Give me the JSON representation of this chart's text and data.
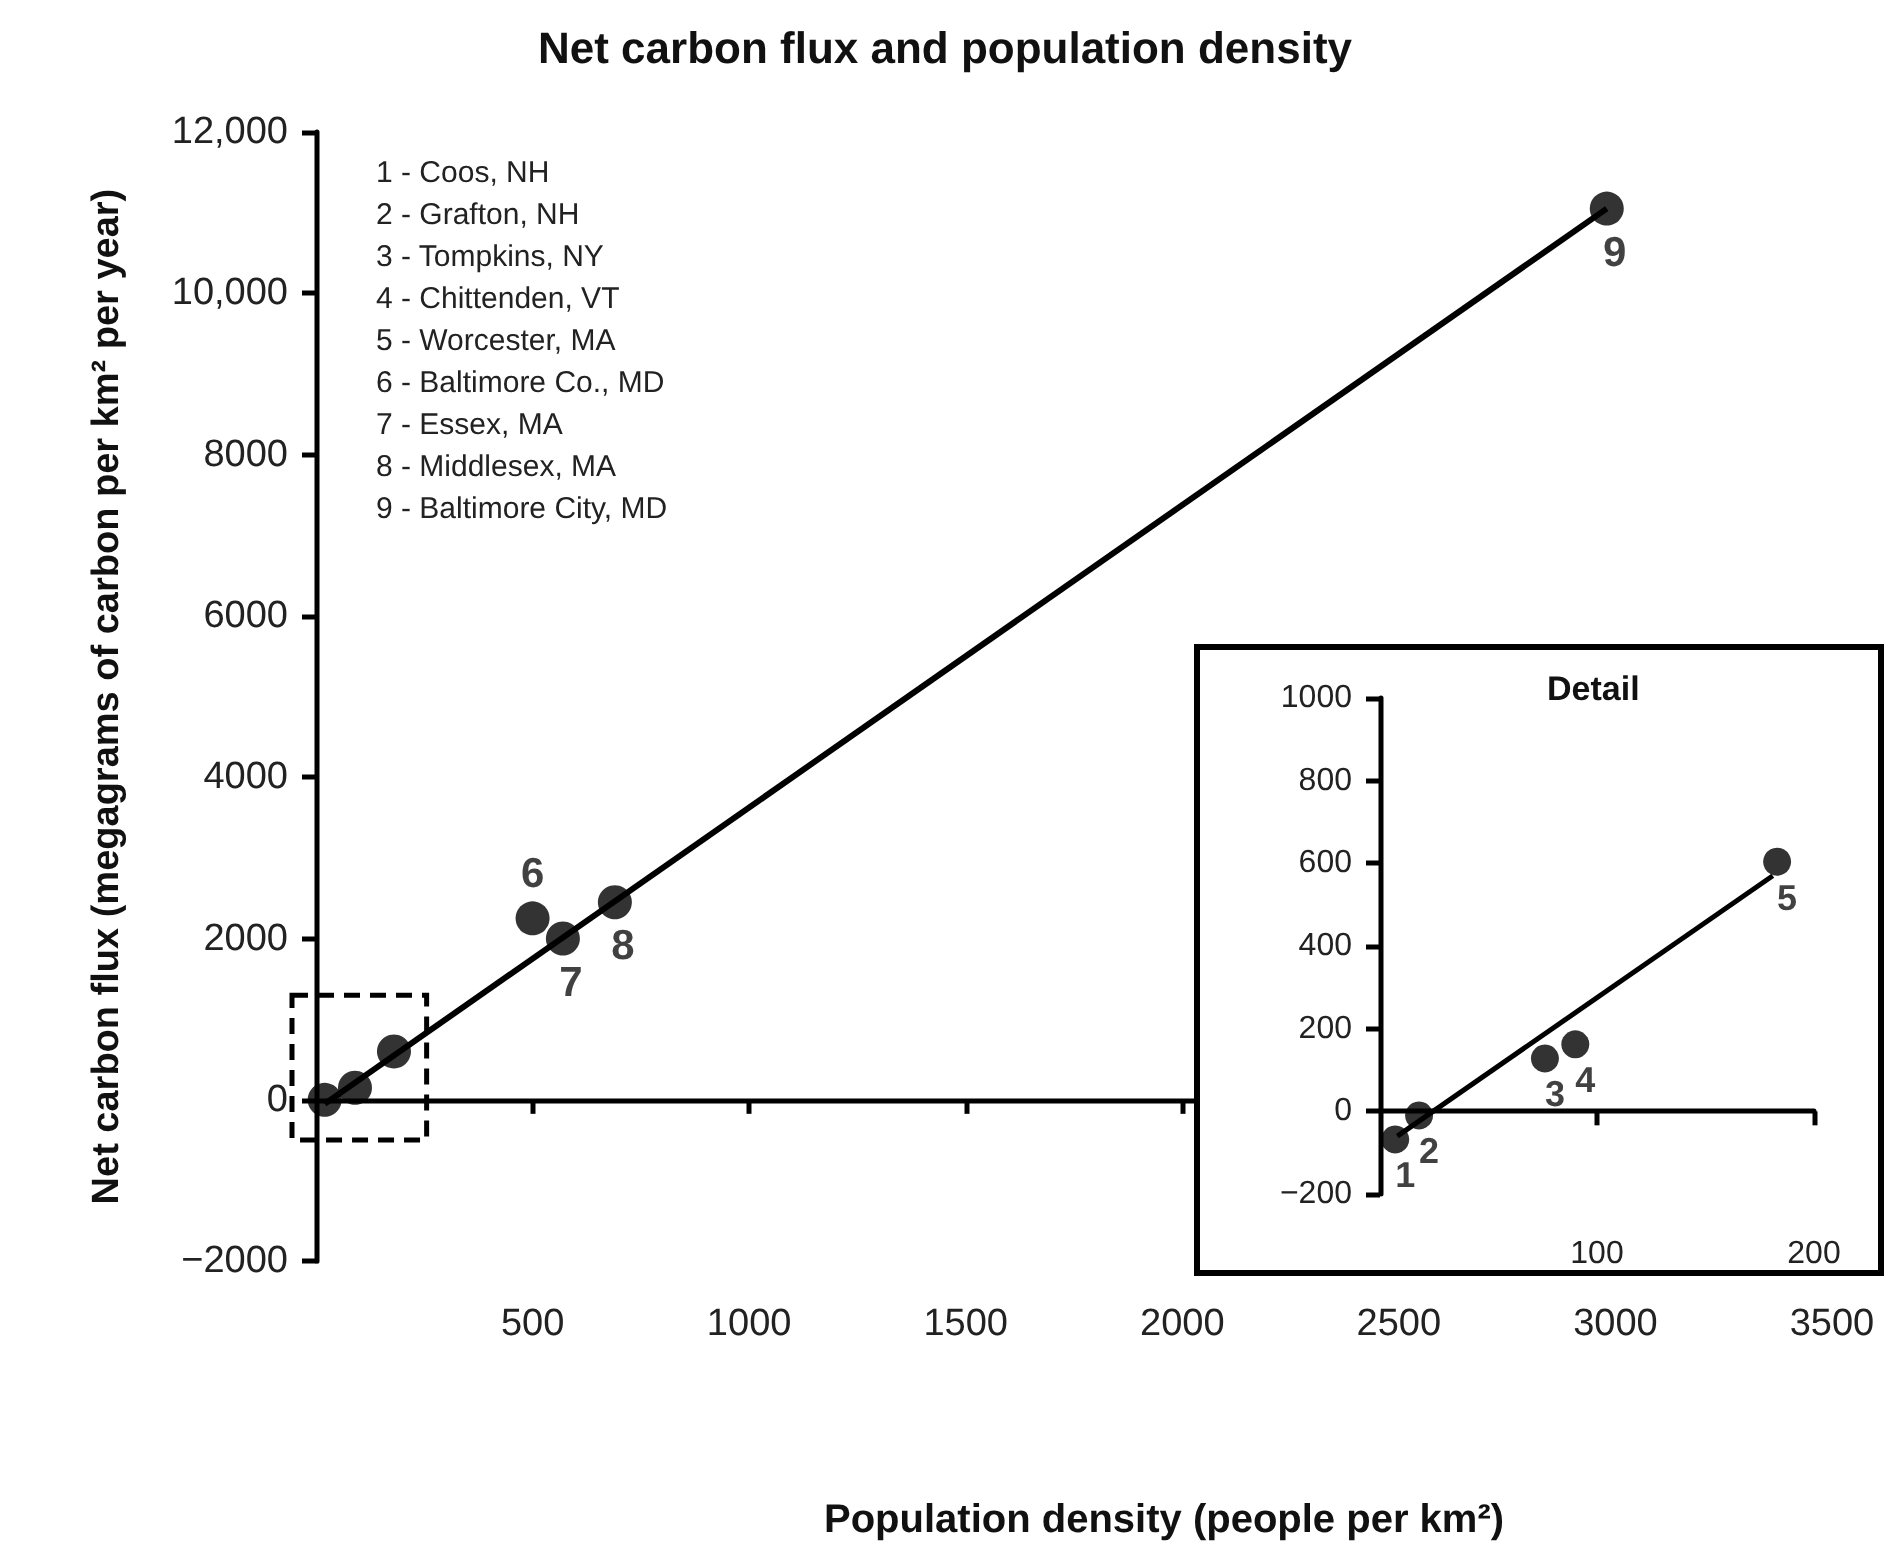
{
  "chart_data": [
    {
      "type": "scatter",
      "title": "Net carbon flux and population density",
      "xlabel": "Population density (people per km²)",
      "ylabel": "Net carbon flux (megagrams of carbon per km² per year)",
      "xlim": [
        0,
        3500
      ],
      "xticks": [
        500,
        1000,
        1500,
        2000,
        2500,
        3000,
        3500
      ],
      "ylim": [
        -2000,
        12000
      ],
      "yticks": [
        {
          "value": -2000,
          "label": "−2000"
        },
        0,
        2000,
        4000,
        6000,
        8000,
        {
          "value": 10000,
          "label": "10,000"
        },
        {
          "value": 12000,
          "label": "12,000"
        }
      ],
      "marker": "circle",
      "series": [
        {
          "color": "#000000",
          "x": [
            20,
            90,
            180,
            500,
            570,
            690,
            2980
          ],
          "values": [
            0,
            150,
            600,
            2250,
            2000,
            2450,
            11050
          ]
        },
        {
          "type": "line",
          "marker": "none",
          "color": "#000000",
          "x": [
            20,
            2980
          ],
          "values": [
            -50,
            11050
          ]
        }
      ],
      "annotations": [
        "1 - Coos, NH",
        "2 - Grafton, NH",
        "3 - Tompkins, NY",
        "4 - Chittenden, VT",
        "5 - Worcester, MA",
        "6 - Baltimore Co., MD",
        "7 - Essex, MA",
        "8 - Middlesex, MA",
        "9 - Baltimore City, MD",
        {
          "text": "6",
          "x": 500,
          "y": 2250
        },
        {
          "text": "7",
          "x": 570,
          "y": 2000
        },
        {
          "text": "8",
          "x": 690,
          "y": 2450
        },
        {
          "text": "9",
          "x": 2980,
          "y": 11050
        }
      ]
    },
    {
      "type": "scatter",
      "title": "Detail",
      "xlim": [
        0,
        200
      ],
      "xticks": [
        100,
        200
      ],
      "ylim": [
        -200,
        1000
      ],
      "yticks": [
        {
          "value": -200,
          "label": "−200"
        },
        0,
        200,
        400,
        600,
        800,
        1000
      ],
      "marker": "circle",
      "series": [
        {
          "color": "#000000",
          "x": [
            7,
            18,
            76,
            90,
            183
          ],
          "values": [
            -68,
            -10,
            128,
            162,
            604
          ]
        },
        {
          "type": "line",
          "marker": "none",
          "color": "#000000",
          "x": [
            8,
            181
          ],
          "values": [
            -60,
            570
          ]
        }
      ],
      "annotations": [
        {
          "text": "1",
          "x": 7,
          "y": -68
        },
        {
          "text": "2",
          "x": 18,
          "y": -10
        },
        {
          "text": "3",
          "x": 76,
          "y": 128
        },
        {
          "text": "4",
          "x": 90,
          "y": 162
        },
        {
          "text": "5",
          "x": 183,
          "y": 604
        }
      ]
    }
  ]
}
